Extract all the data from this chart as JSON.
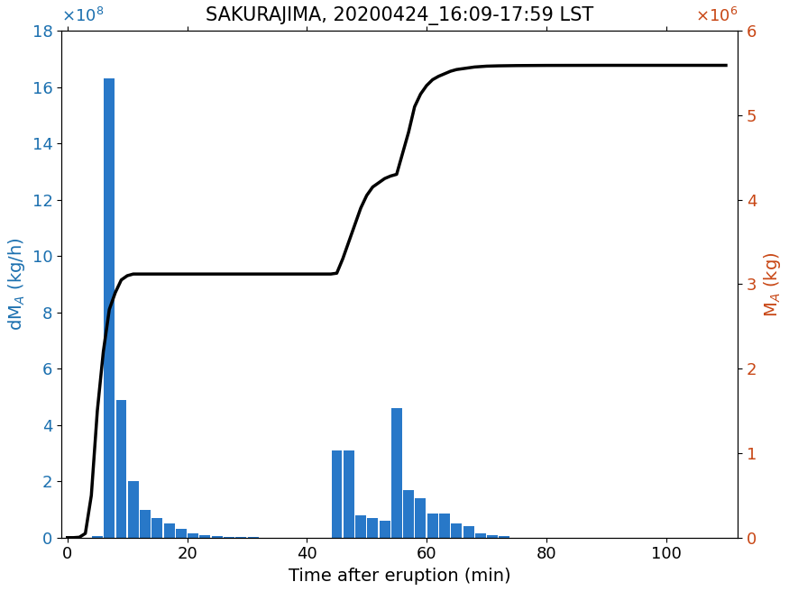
{
  "title": "SAKURAJIMA, 20200424_16:09-17:59 LST",
  "xlabel": "Time after eruption (min)",
  "bar_color": "#2878c8",
  "line_color": "#000000",
  "left_ylim": [
    0,
    1800000000.0
  ],
  "right_ylim": [
    0,
    6000000.0
  ],
  "xlim": [
    -1,
    112
  ],
  "bar_x": [
    5,
    7,
    9,
    11,
    13,
    15,
    17,
    19,
    21,
    23,
    25,
    27,
    29,
    31,
    33,
    45,
    47,
    49,
    51,
    53,
    55,
    57,
    59,
    61,
    63,
    65,
    67,
    69,
    71,
    73
  ],
  "bar_heights": [
    5000000,
    1630000000,
    490000000,
    200000000,
    100000000,
    70000000,
    50000000,
    30000000,
    15000000,
    10000000,
    7000000,
    4000000,
    2000000,
    1500000,
    500000,
    310000000,
    310000000,
    80000000,
    70000000,
    60000000,
    460000000,
    170000000,
    140000000,
    85000000,
    85000000,
    50000000,
    40000000,
    15000000,
    10000000,
    5000000
  ],
  "bar_width": 1.8,
  "line_x": [
    0,
    1,
    2,
    3,
    4,
    5,
    6,
    7,
    8,
    9,
    10,
    11,
    12,
    13,
    14,
    15,
    16,
    17,
    18,
    19,
    20,
    25,
    30,
    35,
    40,
    43,
    44,
    45,
    46,
    47,
    48,
    49,
    50,
    51,
    52,
    53,
    54,
    55,
    56,
    57,
    58,
    59,
    60,
    61,
    62,
    63,
    64,
    65,
    66,
    67,
    68,
    69,
    70,
    72,
    75,
    80,
    90,
    100,
    110
  ],
  "line_y": [
    0,
    0,
    5000,
    50000,
    500000,
    1500000,
    2200000,
    2700000,
    2900000,
    3050000,
    3100000,
    3120000,
    3120000,
    3120000,
    3120000,
    3120000,
    3120000,
    3120000,
    3120000,
    3120000,
    3120000,
    3120000,
    3120000,
    3120000,
    3120000,
    3120000,
    3120000,
    3130000,
    3300000,
    3500000,
    3700000,
    3900000,
    4050000,
    4150000,
    4200000,
    4250000,
    4280000,
    4300000,
    4550000,
    4800000,
    5100000,
    5250000,
    5350000,
    5420000,
    5460000,
    5490000,
    5520000,
    5540000,
    5550000,
    5560000,
    5570000,
    5575000,
    5580000,
    5584000,
    5587000,
    5589000,
    5590000,
    5590000,
    5590000
  ],
  "xticks": [
    0,
    20,
    40,
    60,
    80,
    100
  ],
  "yticks_left": [
    0,
    200000000,
    400000000,
    600000000,
    800000000,
    1000000000,
    1200000000,
    1400000000,
    1600000000,
    1800000000
  ],
  "yticks_right": [
    0,
    1000000,
    2000000,
    3000000,
    4000000,
    5000000,
    6000000
  ],
  "ytick_labels_left": [
    "0",
    "2",
    "4",
    "6",
    "8",
    "10",
    "12",
    "14",
    "16",
    "18"
  ],
  "ytick_labels_right": [
    "0",
    "1",
    "2",
    "3",
    "4",
    "5",
    "6"
  ],
  "title_fontsize": 15,
  "label_fontsize": 14,
  "tick_fontsize": 13,
  "left_color": "#1a6faf",
  "right_color": "#c84614"
}
